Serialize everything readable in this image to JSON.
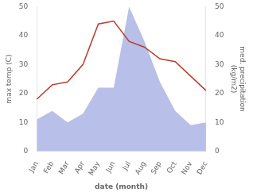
{
  "chart_data": {
    "type": "line",
    "categories": [
      "Jan",
      "Feb",
      "Mar",
      "Apr",
      "May",
      "Jun",
      "Jul",
      "Aug",
      "Sep",
      "Oct",
      "Nov",
      "Dec"
    ],
    "series": [
      {
        "type": "area",
        "color": "#b8bfe8",
        "axis": "y2",
        "values": [
          11,
          14,
          10,
          13,
          22,
          22,
          50,
          38,
          24,
          14,
          9,
          10
        ]
      },
      {
        "type": "line",
        "color": "#c0392b",
        "values": [
          18,
          23,
          24,
          30,
          44,
          45,
          38,
          36,
          32,
          31,
          26,
          21
        ]
      }
    ],
    "xlabel": "date (month)",
    "ylabel": "max temp (C)",
    "y2label": "med. precipitation\n(kg/m2)",
    "ylim": [
      0,
      50
    ],
    "yticks": [
      0,
      10,
      20,
      30,
      40,
      50
    ],
    "y2lim": [
      0,
      50
    ],
    "y2ticks": [
      0,
      10,
      20,
      30,
      40,
      50
    ],
    "grid": false
  }
}
